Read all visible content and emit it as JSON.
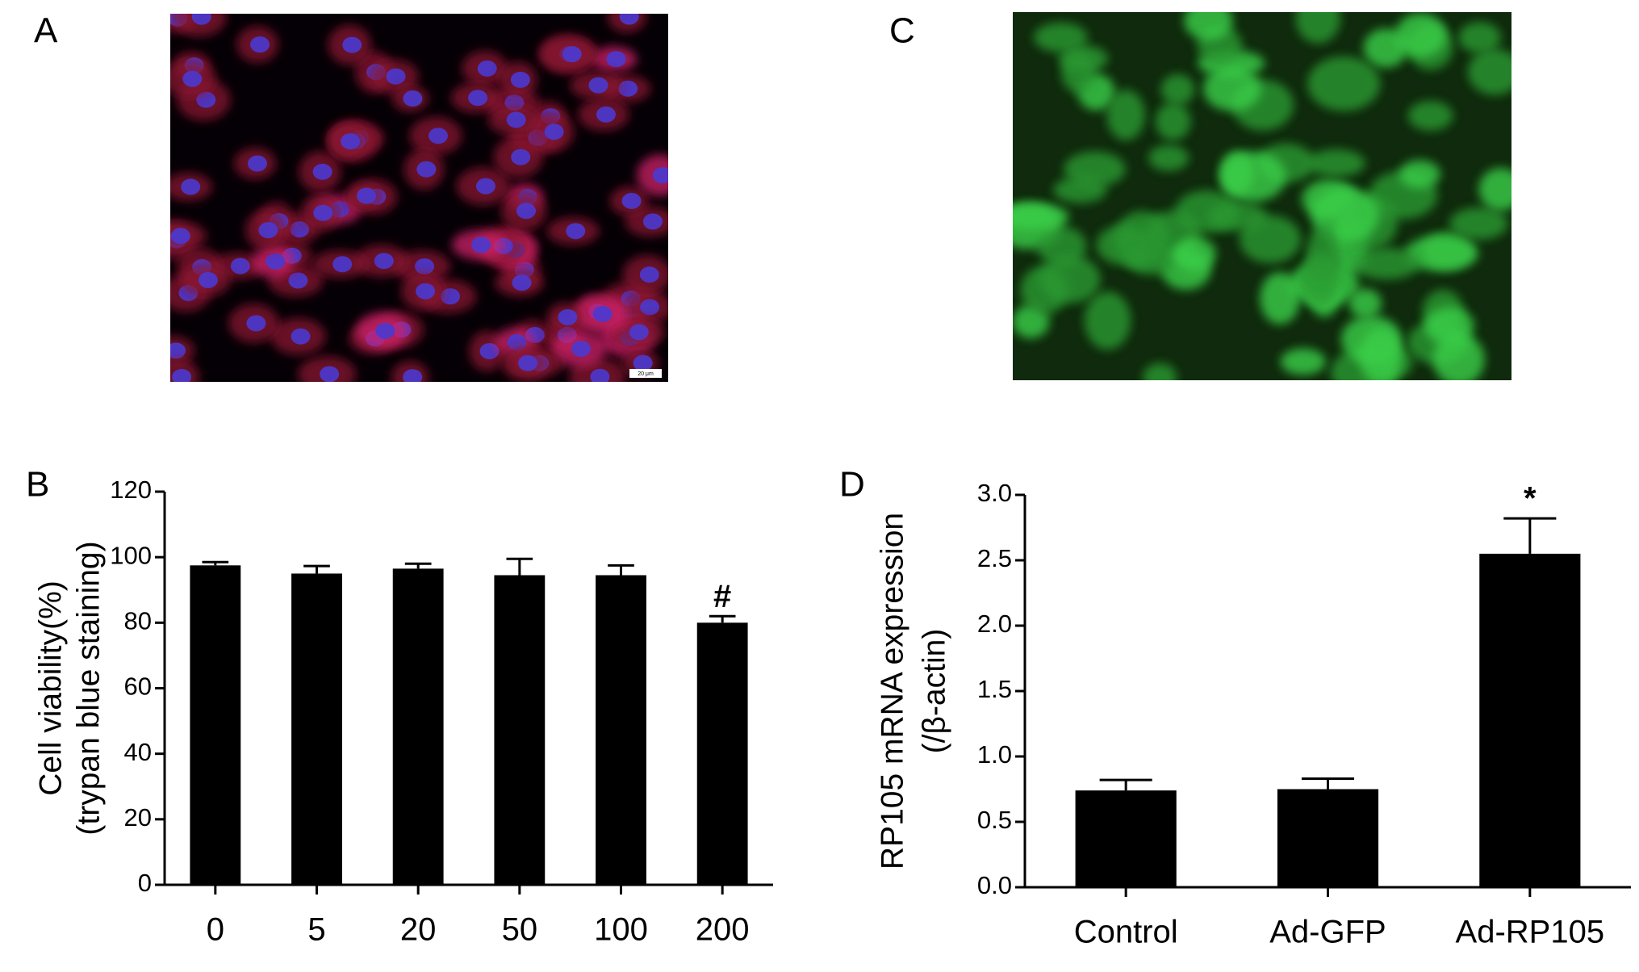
{
  "images": [
    {
      "panel": "A",
      "scale_bar": "20 μm"
    },
    {
      "panel": "C"
    }
  ],
  "chart_data": [
    {
      "type": "bar",
      "panel": "B",
      "ylabel": [
        "Cell viability(%)",
        "(trypan blue staining)"
      ],
      "categories": [
        "0",
        "5",
        "20",
        "50",
        "100",
        "200"
      ],
      "values": [
        97.5,
        95,
        96.5,
        94.5,
        94.5,
        80
      ],
      "errors": [
        1,
        2.3,
        1.5,
        5,
        3,
        2
      ],
      "annotations": [
        null,
        null,
        null,
        null,
        null,
        "#"
      ],
      "color": "#000000",
      "ylim": [
        0,
        120
      ],
      "yticks": [
        0,
        20,
        40,
        60,
        80,
        100,
        120
      ]
    },
    {
      "type": "bar",
      "panel": "D",
      "ylabel": [
        "RP105 mRNA expression",
        "(/β-actin)"
      ],
      "categories": [
        "Control",
        "Ad-GFP",
        "Ad-RP105"
      ],
      "values": [
        0.74,
        0.75,
        2.55
      ],
      "errors": [
        0.08,
        0.08,
        0.27
      ],
      "annotations": [
        null,
        null,
        "*"
      ],
      "color": "#000000",
      "ylim": [
        0,
        3
      ],
      "yticks": [
        {
          "value": 0,
          "label": "0.0"
        },
        0.5,
        {
          "value": 1,
          "label": "1.0"
        },
        1.5,
        {
          "value": 2,
          "label": "2.0"
        },
        2.5,
        {
          "value": 3,
          "label": "3.0"
        }
      ]
    }
  ]
}
